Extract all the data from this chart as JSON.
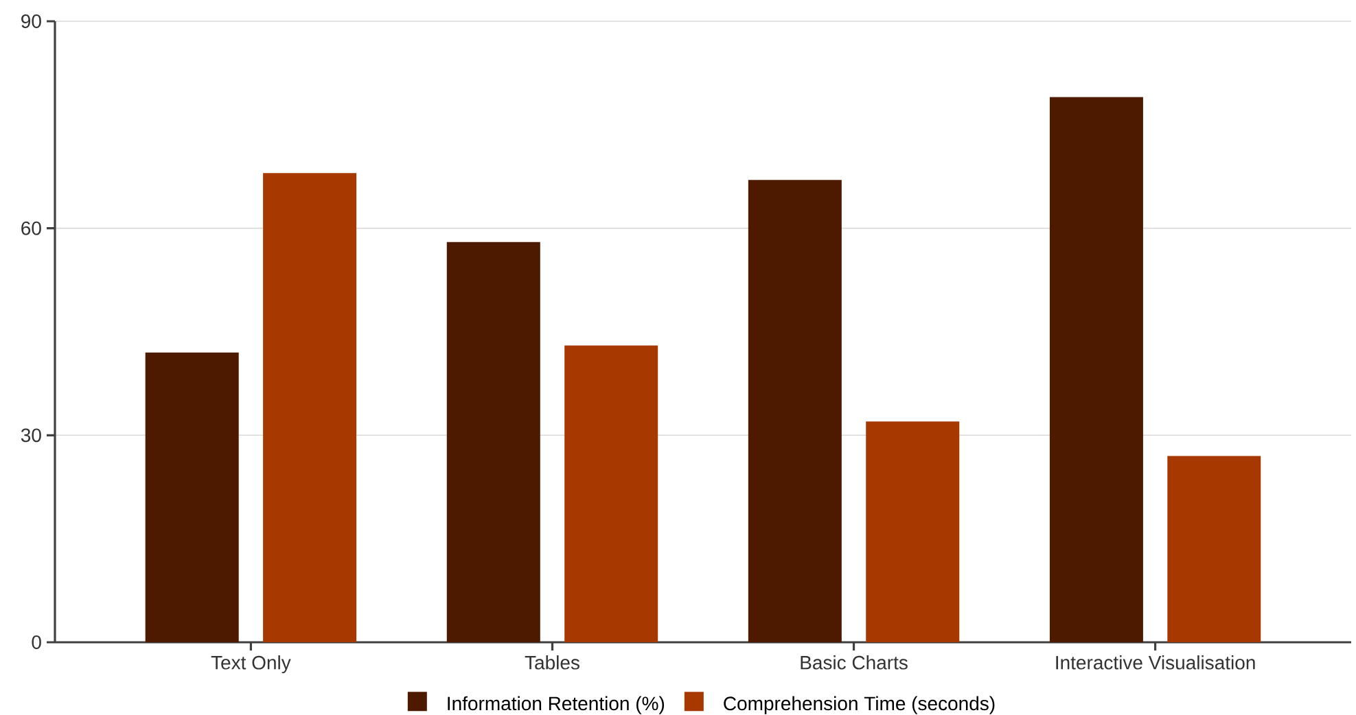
{
  "chart_data": {
    "type": "bar",
    "categories": [
      "Text Only",
      "Tables",
      "Basic Charts",
      "Interactive Visualisation"
    ],
    "series": [
      {
        "name": "Information Retention (%)",
        "color": "#4d1a00",
        "values": [
          42,
          58,
          67,
          79
        ]
      },
      {
        "name": "Comprehension Time (seconds)",
        "color": "#a63800",
        "values": [
          68,
          43,
          32,
          27
        ]
      }
    ],
    "ylim": [
      0,
      90
    ],
    "yticks": [
      0,
      30,
      60,
      90
    ],
    "grid": "y",
    "legend": "bottom"
  }
}
